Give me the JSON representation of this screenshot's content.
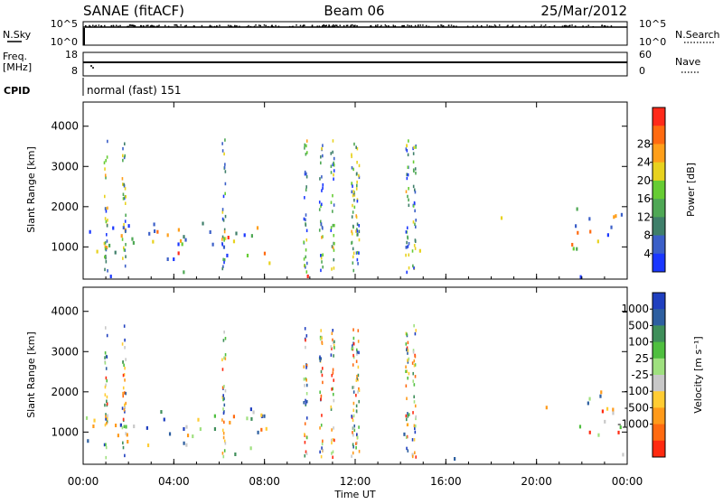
{
  "header": {
    "title": "SANAE (fitACF)",
    "beam": "Beam 06",
    "date": "25/Mar/2012"
  },
  "top_panel": {
    "nsky_label": "N.Sky",
    "nsearch_label": "N.Search",
    "nsky_ticks": [
      "10^5",
      "10^0"
    ],
    "nsearch_ticks": [
      "10^5",
      "10^0"
    ],
    "freq_label_1": "Freq.",
    "freq_label_2": "[MHz]",
    "freq_ticks": [
      "18",
      "8"
    ],
    "nave_label": "Nave",
    "nave_ticks": [
      "60",
      "0"
    ],
    "cpid_label": "CPID",
    "cpid_value": "normal (fast) 151"
  },
  "chart_data": [
    {
      "type": "heatmap",
      "name": "power",
      "ylabel": "Slant Range [km]",
      "xlabel": "Time UT",
      "x_ticks": [
        "00:00",
        "04:00",
        "08:00",
        "12:00",
        "16:00",
        "20:00",
        "00:00"
      ],
      "y_ticks": [
        "1000",
        "2000",
        "3000",
        "4000"
      ],
      "ylim": [
        200,
        4600
      ],
      "colorbar": {
        "label": "Power [dB]",
        "ticks": [
          "4",
          "8",
          "12",
          "16",
          "20",
          "24",
          "28"
        ],
        "colors": [
          "#1a37ff",
          "#3b5fc8",
          "#3f7f6a",
          "#4fa855",
          "#66cc33",
          "#e8d21e",
          "#ff9f1a",
          "#ff6a10",
          "#ff2a1a"
        ]
      }
    },
    {
      "type": "heatmap",
      "name": "velocity",
      "ylabel": "Slant Range [km]",
      "xlabel": "Time UT",
      "x_ticks": [
        "00:00",
        "04:00",
        "08:00",
        "12:00",
        "16:00",
        "20:00",
        "00:00"
      ],
      "y_ticks": [
        "1000",
        "2000",
        "3000",
        "4000"
      ],
      "ylim": [
        200,
        4600
      ],
      "colorbar": {
        "label": "Velocity [m s⁻¹]",
        "ticks": [
          "1000",
          "500",
          "100",
          "25",
          "-25",
          "-100",
          "-500",
          "-1000"
        ],
        "colors": [
          "#1f3fbf",
          "#2e5fa0",
          "#3f8f5a",
          "#4fbf3f",
          "#9fe07f",
          "#c8c8c8",
          "#ffcc33",
          "#ff9a1a",
          "#ff6a10",
          "#ff2a10"
        ]
      }
    }
  ]
}
